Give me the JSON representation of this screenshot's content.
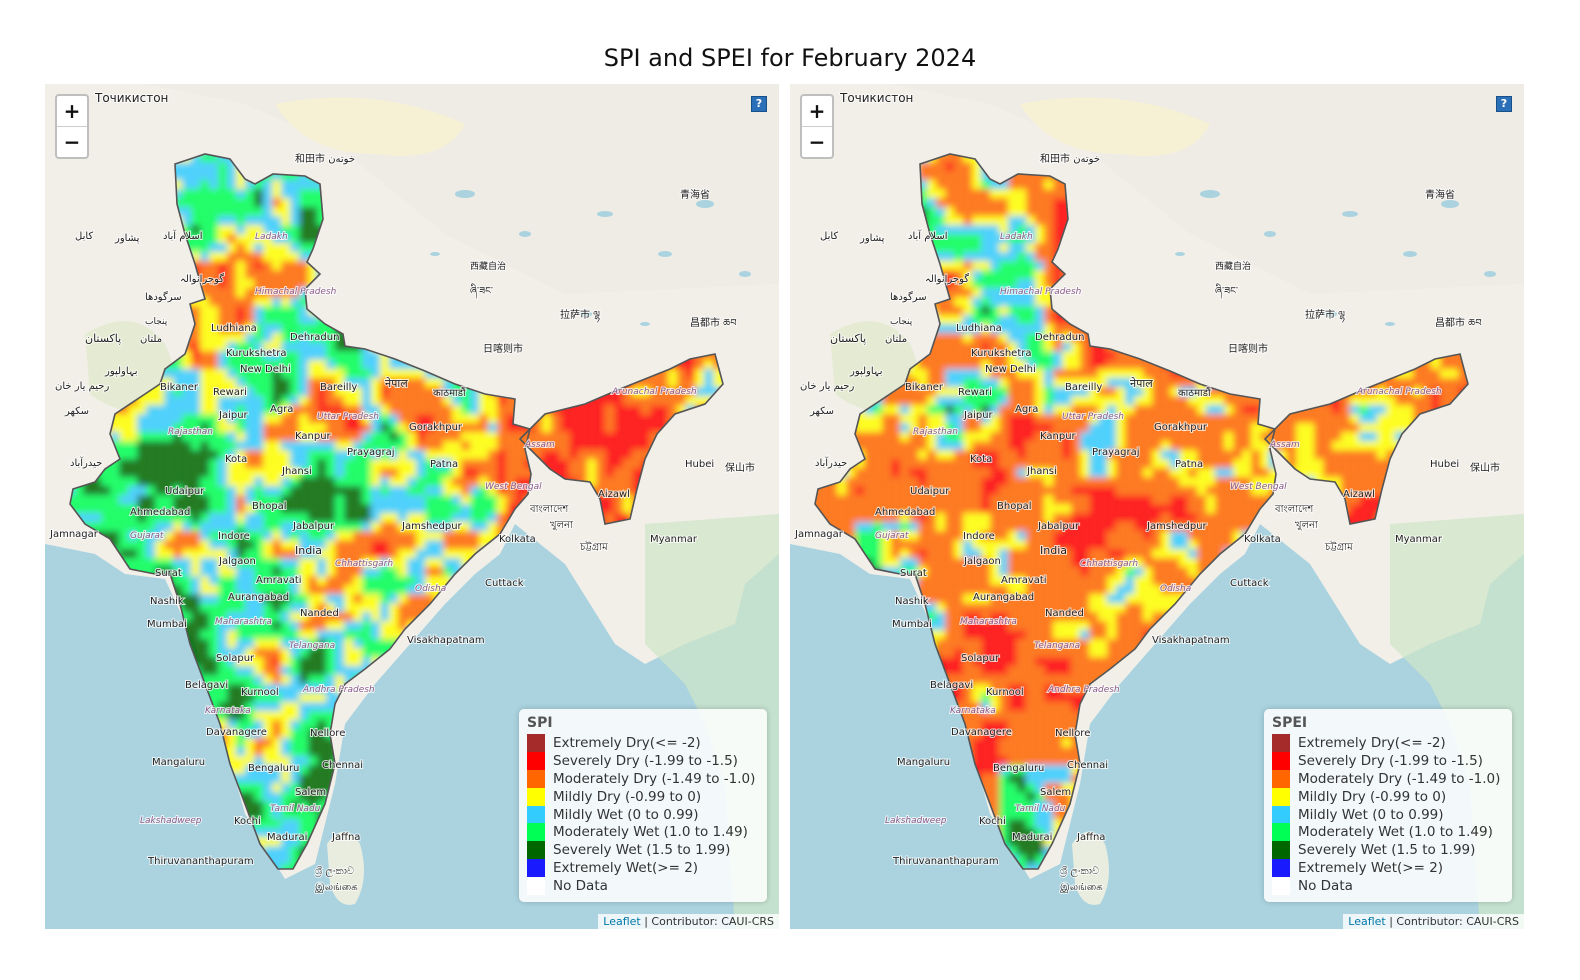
{
  "title": "SPI and SPEI for February 2024",
  "zoom": {
    "in_label": "+",
    "out_label": "−"
  },
  "help_label": "?",
  "attribution": {
    "link_text": "Leaflet",
    "text": " | Contributor: CAUI-CRS"
  },
  "legend_classes": [
    {
      "label": "Extremely Dry(<= -2)",
      "color": "#a52a2a"
    },
    {
      "label": "Severely Dry (-1.99 to -1.5)",
      "color": "#ff0000"
    },
    {
      "label": "Moderately Dry (-1.49 to -1.0)",
      "color": "#ff6600"
    },
    {
      "label": "Mildly Dry (-0.99 to 0)",
      "color": "#ffff00"
    },
    {
      "label": "Mildly Wet (0 to 0.99)",
      "color": "#33ccff"
    },
    {
      "label": "Moderately Wet (1.0 to 1.49)",
      "color": "#00ff55"
    },
    {
      "label": "Severely Wet (1.5 to 1.99)",
      "color": "#006600"
    },
    {
      "label": "Extremely Wet(>= 2)",
      "color": "#1a1aff"
    },
    {
      "label": "No Data",
      "color": "#ffffff"
    }
  ],
  "panels": [
    {
      "legend_title": "SPI"
    },
    {
      "legend_title": "SPEI"
    }
  ],
  "place_labels": [
    "Точикистон",
    "和田市 خوتەن",
    "青海省",
    "کابل",
    "پشاور",
    "اسلام آباد",
    "گوجرانوالہ",
    "سرگودھا",
    "پنجاب",
    "Ladakh",
    "西藏自治",
    "ཞི་ཟང་",
    "拉萨市 ལྷ",
    "昌都市 ཆབ",
    "日喀则市",
    "Himachal Pradesh",
    "Ludhiana",
    "Dehradun",
    "Kurukshetra",
    "پاکستان",
    "ملتان",
    "بہاولپور",
    "New Delhi",
    "رحیم یار خان",
    "Bikaner",
    "Rewari",
    "Bareilly",
    "नेपाल",
    "काठमाडौं",
    "Jaipur",
    "Agra",
    "Uttar Pradesh",
    "Arunachal Pradesh",
    "سکھر",
    "Rajasthan",
    "Kanpur",
    "Gorakhpur",
    "Assam",
    "Kota",
    "Prayagraj",
    "Patna",
    "Jhansi",
    "保山市",
    "حیدرآباد",
    "Udaipur",
    "West Bengal",
    "Aizawl",
    "Ahmedabad",
    "Bhopal",
    "Jamshedpur",
    "Jabalpur",
    "Jamnagar",
    "Gujarat",
    "Indore",
    "India",
    "Kolkata",
    "Jalgaon",
    "Chhattisgarh",
    "Surat",
    "Amravati",
    "Cuttack",
    "Odisha",
    "Nashik",
    "Aurangabad",
    "Mumbai",
    "Nanded",
    "Maharashtra",
    "Visakhapatnam",
    "Telangana",
    "Solapur",
    "Belagavi",
    "Kurnool",
    "Andhra Pradesh",
    "Karnataka",
    "Davanagere",
    "Nellore",
    "Mangaluru",
    "Bengaluru",
    "Chennai",
    "Salem",
    "Lakshadweep",
    "Kochi",
    "Tamil Nadu",
    "Madurai",
    "Jaffna",
    "Thiruvananthapuram",
    "ශ්‍රී ලංකාව",
    "இலங்கை",
    "বাংলাদেশ",
    "খুলনা",
    "চট্টগ্রাম",
    "Myanmar",
    "Hubei"
  ]
}
